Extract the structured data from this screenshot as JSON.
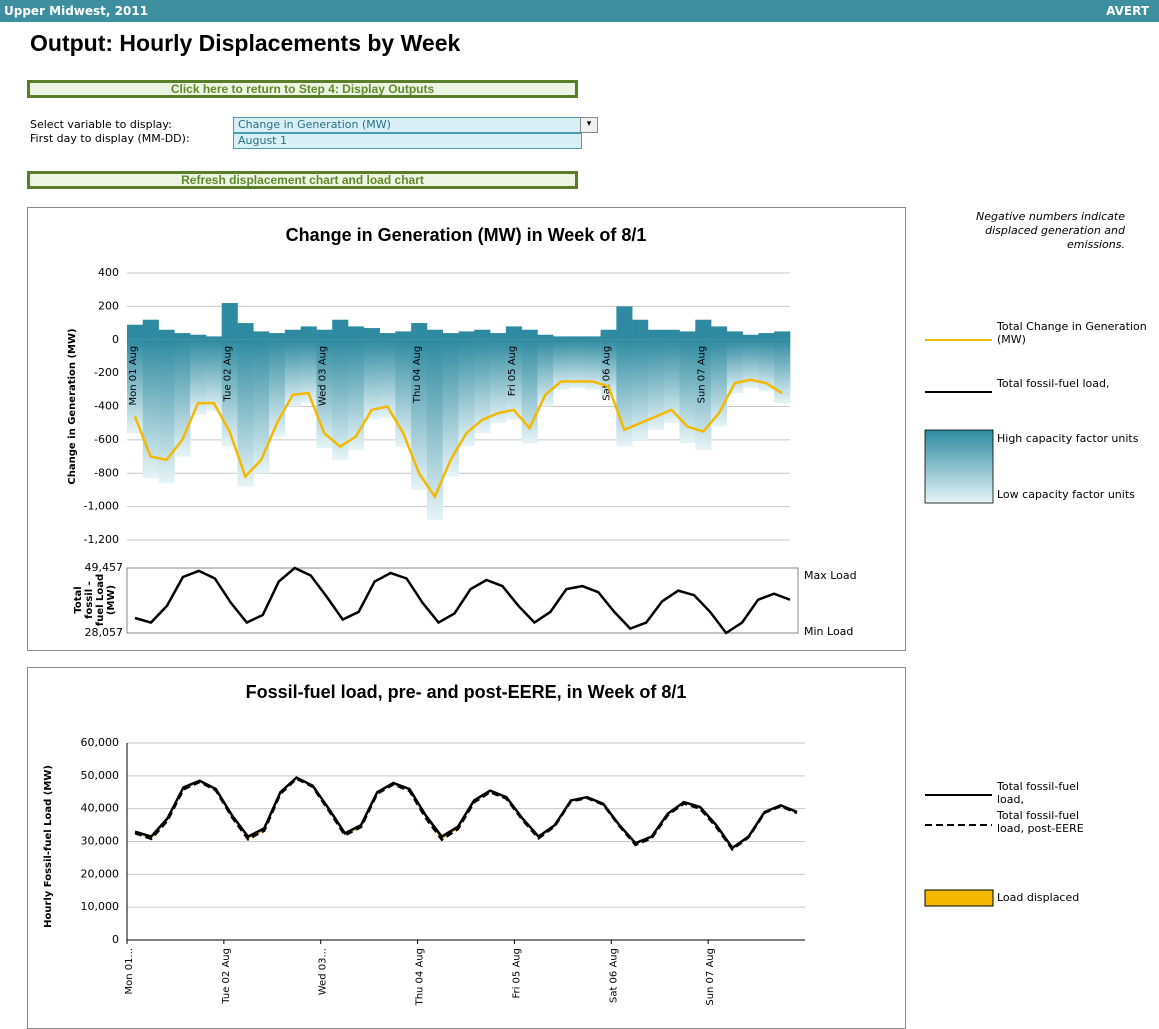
{
  "header": {
    "region": "Upper Midwest, 2011",
    "brand": "AVERT"
  },
  "title": "Output: Hourly Displacements by Week",
  "buttons": [
    "Click here to return to Step 4: Display Outputs",
    "Refresh displacement chart and load chart"
  ],
  "controls": [
    {
      "label": "Select variable to display:",
      "value": "Change in Generation (MW)"
    },
    {
      "label": "First day to display (MM-DD):",
      "value": "August 1"
    }
  ],
  "note": "Negative numbers indicate displaced generation and emissions.",
  "chart_data": [
    {
      "type": "bar",
      "title": "Change in Generation (MW) in Week of 8/1",
      "y_label": "Change in Generation (MW)",
      "categories": [
        "Mon 01 Aug",
        null,
        null,
        null,
        null,
        null,
        "Tue 02 Aug",
        null,
        null,
        null,
        null,
        null,
        "Wed 03 Aug",
        null,
        null,
        null,
        null,
        null,
        "Thu 04 Aug",
        null,
        null,
        null,
        null,
        null,
        "Fri 05 Aug",
        null,
        null,
        null,
        null,
        null,
        "Sat 06 Aug",
        null,
        null,
        null,
        null,
        null,
        "Sun 07 Aug",
        null,
        null,
        null,
        null,
        null
      ],
      "ylim": [
        -1200,
        400
      ],
      "yticks": [
        {
          "value": -1200,
          "label": "-1,200"
        },
        {
          "value": -1000,
          "label": "-1,000"
        },
        -800,
        -600,
        -400,
        -200,
        0,
        200,
        400
      ],
      "grid": true,
      "series": [
        {
          "name": "Total Change in Generation (MW)",
          "color": "#f5b800",
          "values": [
            -460,
            -700,
            -720,
            -600,
            -380,
            -380,
            -550,
            -820,
            -720,
            -500,
            -330,
            -320,
            -560,
            -640,
            -580,
            -420,
            -400,
            -560,
            -800,
            -940,
            -720,
            -560,
            -480,
            -440,
            -420,
            -530,
            -330,
            -250,
            -250,
            -250,
            -280,
            -540,
            -500,
            -460,
            -420,
            -520,
            -550,
            -440,
            -260,
            -240,
            -260,
            -320
          ]
        }
      ],
      "bars": {
        "up": [
          90,
          120,
          60,
          40,
          30,
          20,
          220,
          100,
          50,
          40,
          60,
          80,
          60,
          120,
          80,
          70,
          40,
          50,
          100,
          60,
          40,
          50,
          60,
          40,
          80,
          60,
          30,
          20,
          20,
          20,
          60,
          200,
          120,
          60,
          60,
          50,
          120,
          80,
          50,
          30,
          40,
          50
        ],
        "down": [
          -560,
          -830,
          -860,
          -700,
          -450,
          -430,
          -640,
          -880,
          -800,
          -580,
          -400,
          -380,
          -650,
          -720,
          -660,
          -480,
          -470,
          -640,
          -900,
          -1080,
          -820,
          -640,
          -560,
          -500,
          -480,
          -620,
          -400,
          -300,
          -290,
          -300,
          -340,
          -640,
          -600,
          -540,
          -500,
          -620,
          -660,
          -520,
          -320,
          -290,
          -310,
          -380
        ],
        "color_high": "#2e8aa0",
        "color_low": "#e6f4f7",
        "legend_high": "High capacity factor units",
        "legend_low": "Low capacity factor units"
      },
      "load": {
        "name": "Total fossil-fuel load,",
        "y_label": "Total fossil - fuel Load (MW)",
        "color": "#000000",
        "ylim": [
          28057,
          49457
        ],
        "yticks": [
          {
            "value": 28057,
            "label": "28,057"
          },
          {
            "value": 49457,
            "label": "49,457"
          }
        ],
        "annotations": [
          "Max Load",
          "Min Load"
        ],
        "values": [
          33000,
          31500,
          37000,
          46500,
          48500,
          46000,
          38000,
          31500,
          34000,
          45000,
          49457,
          47000,
          40000,
          32500,
          35000,
          45000,
          47800,
          46000,
          38000,
          31500,
          34500,
          42500,
          45500,
          43500,
          37000,
          31500,
          35000,
          42500,
          43500,
          41500,
          35000,
          29500,
          31500,
          38500,
          42000,
          40500,
          35000,
          28057,
          31500,
          39000,
          41000,
          39000
        ]
      }
    },
    {
      "type": "line",
      "title": "Fossil-fuel load, pre- and post-EERE, in Week of 8/1",
      "y_label": "Hourly Fossil-fuel Load (MW)",
      "categories": [
        "Mon 01...",
        null,
        null,
        null,
        null,
        null,
        "Tue 02 Aug",
        null,
        null,
        null,
        null,
        null,
        "Wed 03...",
        null,
        null,
        null,
        null,
        null,
        "Thu 04 Aug",
        null,
        null,
        null,
        null,
        null,
        "Fri 05 Aug",
        null,
        null,
        null,
        null,
        null,
        "Sat 06 Aug",
        null,
        null,
        null,
        null,
        null,
        "Sun 07 Aug",
        null,
        null,
        null,
        null,
        null
      ],
      "ylim": [
        0,
        60000
      ],
      "yticks": [
        0,
        {
          "value": 10000,
          "label": "10,000"
        },
        {
          "value": 20000,
          "label": "20,000"
        },
        {
          "value": 30000,
          "label": "30,000"
        },
        {
          "value": 40000,
          "label": "40,000"
        },
        {
          "value": 50000,
          "label": "50,000"
        },
        {
          "value": 60000,
          "label": "60,000"
        }
      ],
      "grid": true,
      "series": [
        {
          "name": "Total fossil-fuel load,",
          "color": "#000000",
          "dash": false,
          "values": [
            33000,
            31500,
            37000,
            46500,
            48500,
            46000,
            38000,
            31500,
            34000,
            45000,
            49457,
            47000,
            40000,
            32500,
            35000,
            45000,
            47800,
            46000,
            38000,
            31500,
            34500,
            42500,
            45500,
            43500,
            37000,
            31500,
            35000,
            42500,
            43500,
            41500,
            35000,
            29500,
            31500,
            38500,
            42000,
            40500,
            35000,
            28057,
            31500,
            39000,
            41000,
            39000
          ]
        },
        {
          "name": "Total fossil-fuel load, post-EERE",
          "color": "#000000",
          "dash": true,
          "values": [
            32540,
            30800,
            36280,
            45900,
            48120,
            45620,
            37450,
            30680,
            33280,
            44500,
            49127,
            46680,
            39440,
            31860,
            34420,
            44580,
            47400,
            45440,
            37200,
            30560,
            33780,
            41940,
            45020,
            43060,
            36580,
            30970,
            34670,
            42250,
            43250,
            41250,
            34720,
            28960,
            31000,
            38040,
            41580,
            39980,
            34450,
            27617,
            31240,
            38760,
            40740,
            38680
          ]
        }
      ],
      "displaced": {
        "name": "Load displaced",
        "color": "#f5b800"
      }
    }
  ]
}
